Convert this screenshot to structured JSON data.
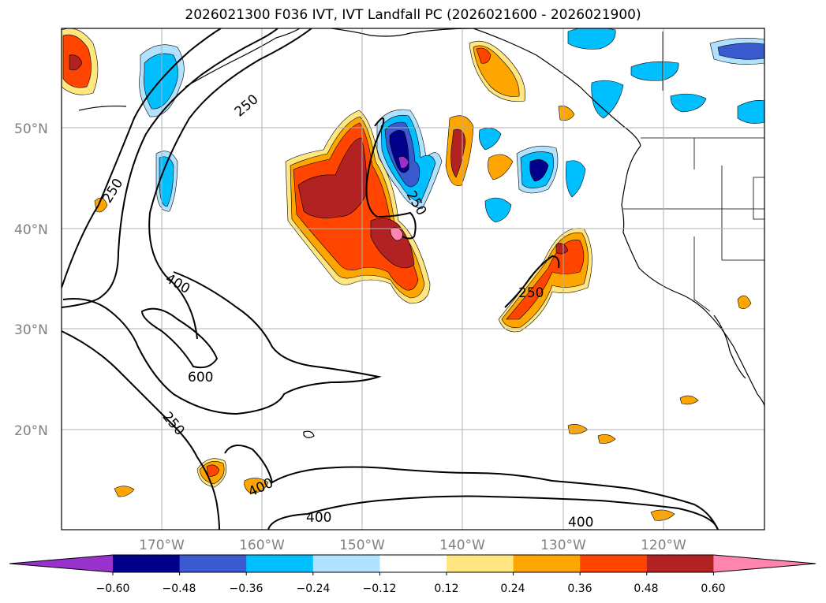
{
  "title": "2026021300 F036 IVT, IVT Landfall PC (2026021600 - 2026021900)",
  "map": {
    "lat_labels": [
      "50°N",
      "40°N",
      "30°N",
      "20°N"
    ],
    "lon_labels": [
      "170°W",
      "160°W",
      "150°W",
      "140°W",
      "130°W",
      "120°W"
    ],
    "ivt_contour_labels": [
      "250",
      "250",
      "250",
      "250",
      "250",
      "400",
      "400",
      "400",
      "400",
      "600"
    ],
    "gridlines": true
  },
  "colorbar": {
    "ticks": [
      "−0.60",
      "−0.48",
      "−0.36",
      "−0.24",
      "−0.12",
      "0.12",
      "0.24",
      "0.36",
      "0.48",
      "0.60"
    ],
    "colors": [
      "#9932cc",
      "#00008b",
      "#3a5bcf",
      "#00bfff",
      "#b0e2ff",
      "#ffffff",
      "#ffe680",
      "#ffa500",
      "#ff4500",
      "#b22222",
      "#ff85b0"
    ],
    "extend": "both"
  }
}
